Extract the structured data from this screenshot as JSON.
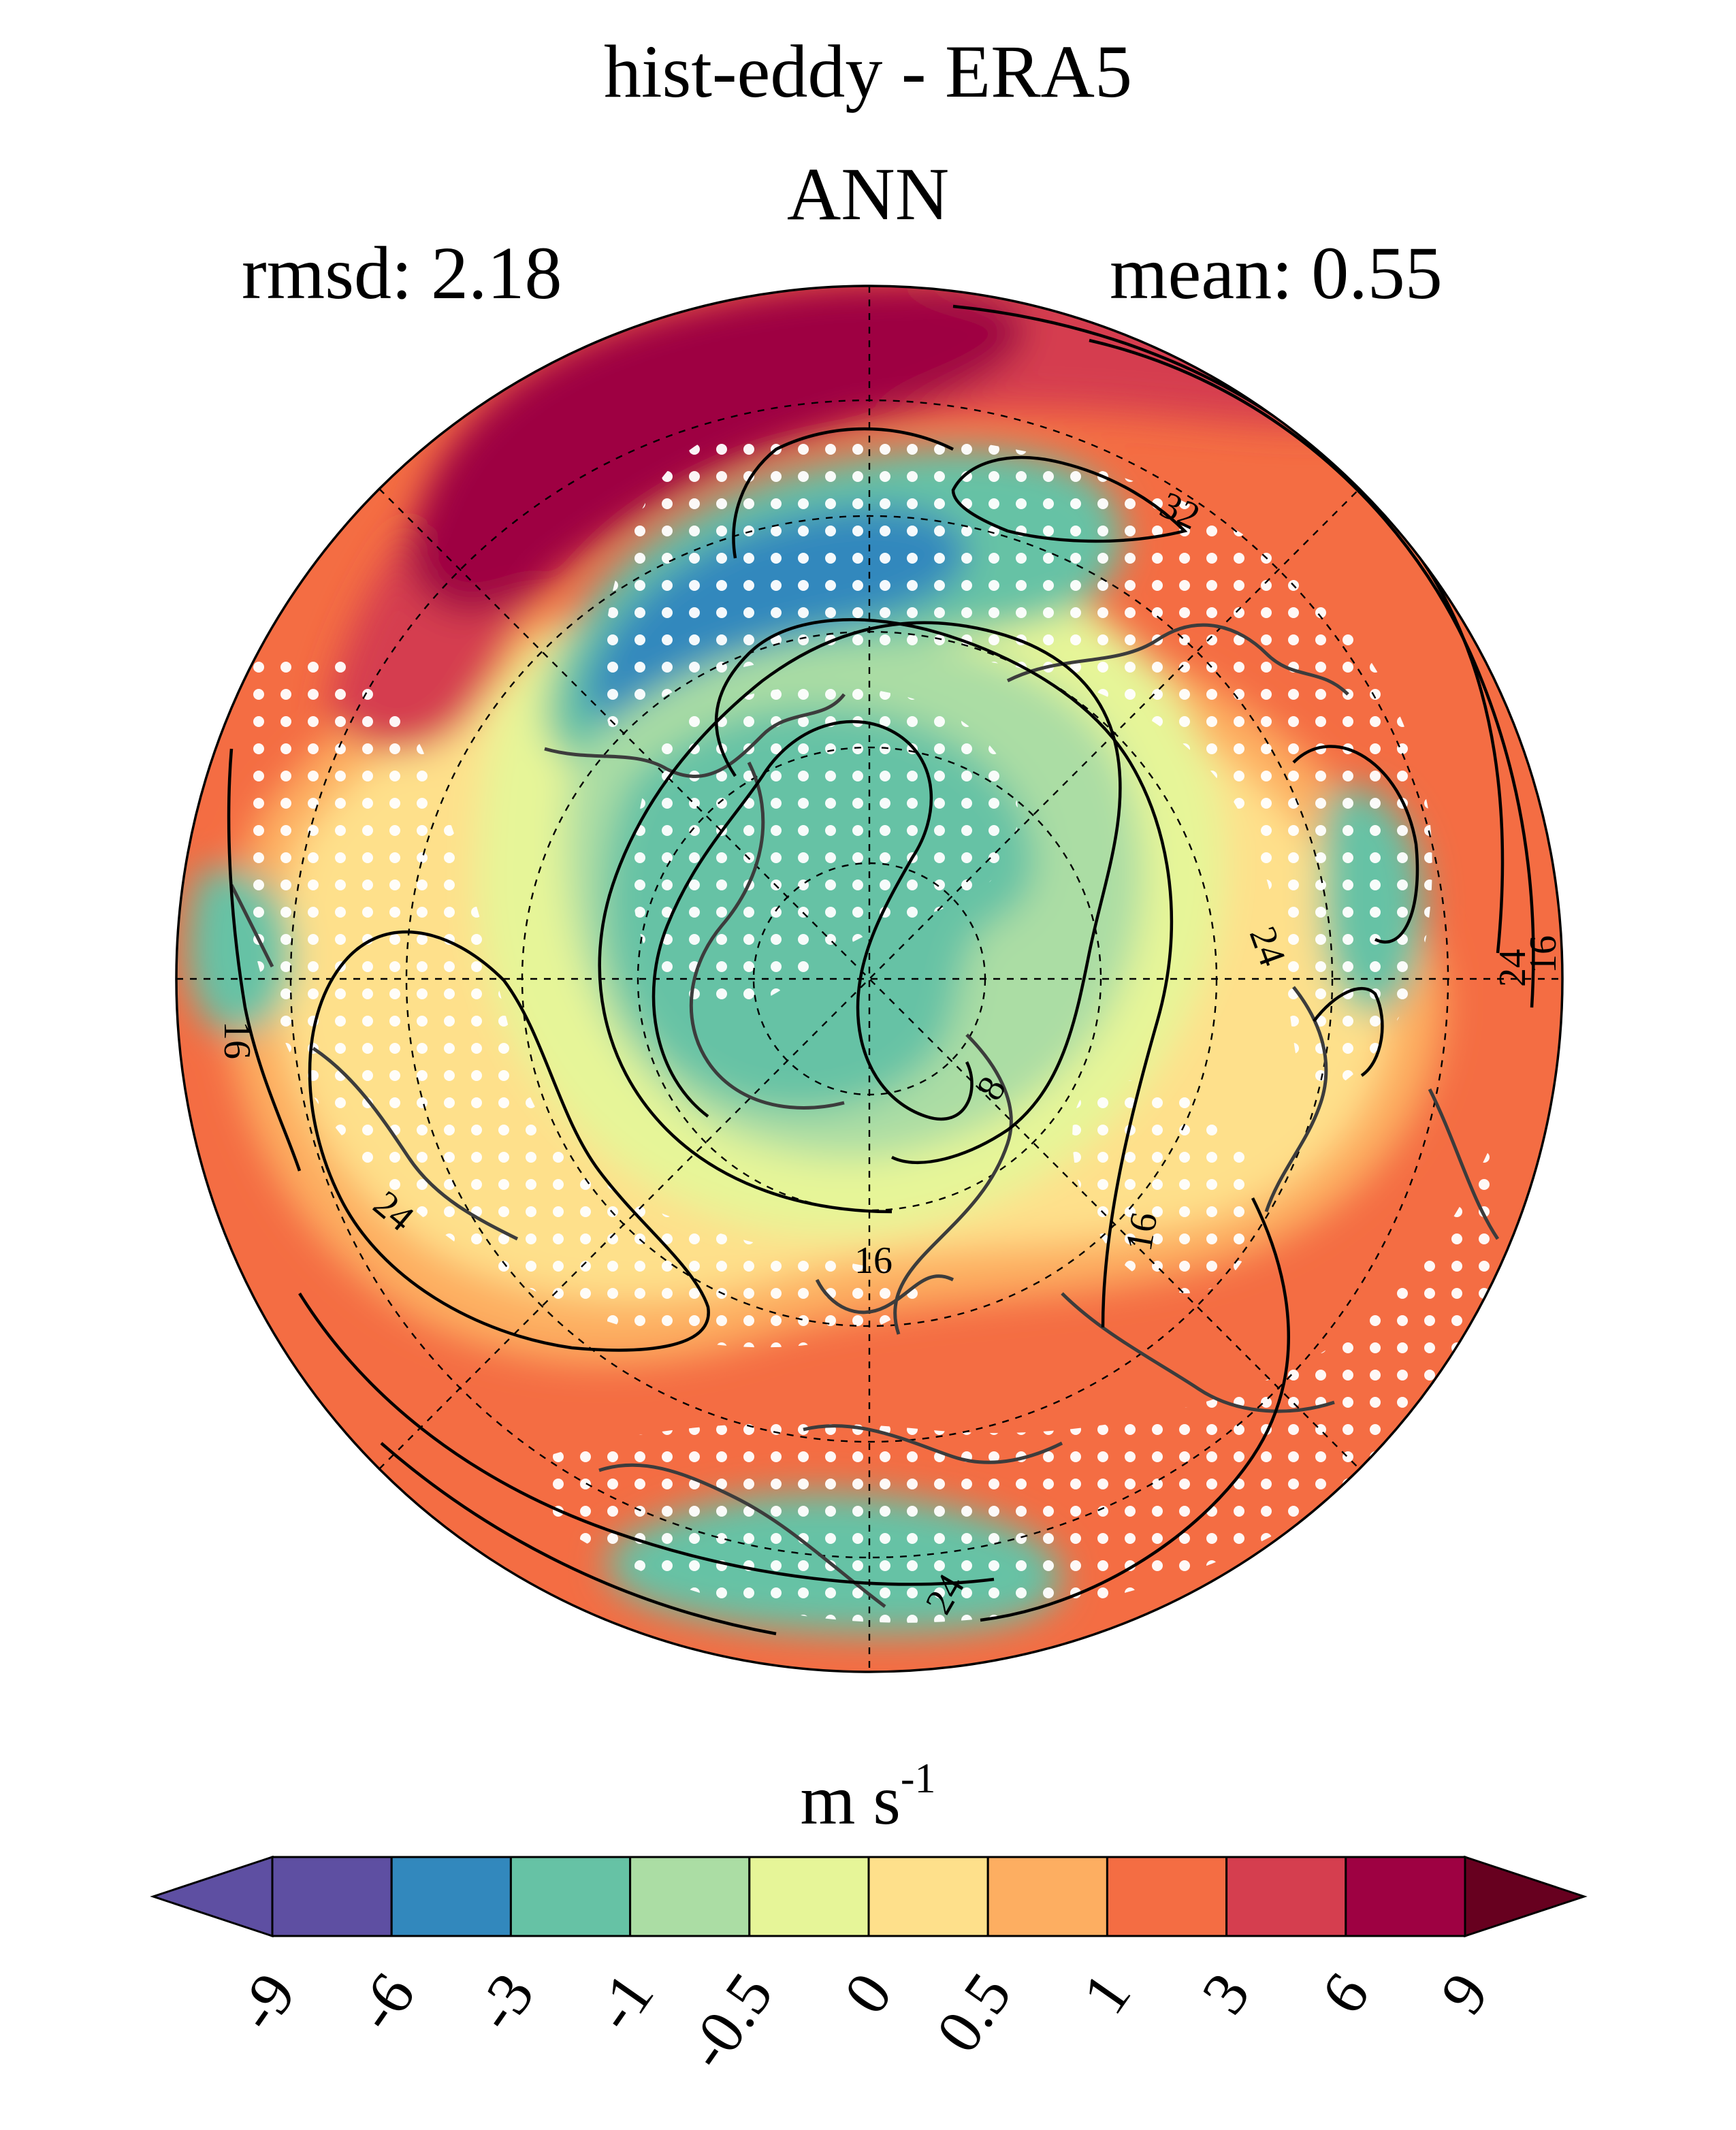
{
  "title": "hist-eddy - ERA5",
  "subtitle": "ANN",
  "stats": {
    "rmsd": "rmsd: 2.18",
    "mean": "mean: 0.55"
  },
  "chart_data": {
    "type": "polar-filled-contour-map",
    "projection": "north-polar-stereographic",
    "hemisphere": "Northern Hemisphere",
    "field": "hist-eddy minus ERA5 difference",
    "season": "ANN",
    "rmsd": 2.18,
    "mean": 0.55,
    "units": {
      "base": "m s",
      "exponent": "-1"
    },
    "colorbar": {
      "levels": [
        "-9",
        "-6",
        "-3",
        "-1",
        "-0.5",
        "0",
        "0.5",
        "1",
        "3",
        "6",
        "9"
      ],
      "colors": [
        "#5e4fa2",
        "#3288bd",
        "#66c2a5",
        "#abdda4",
        "#e6f598",
        "#fee08b",
        "#fdae61",
        "#f46d43",
        "#d53e4f",
        "#9e0142"
      ],
      "under_color": "#5e4fa2",
      "over_color": "#67001f",
      "extend": "both"
    },
    "contour_overlay": {
      "style": "solid black lines",
      "labels": [
        "8",
        "16",
        "16",
        "16",
        "24",
        "24",
        "24",
        "32"
      ]
    },
    "stippling": "white dots",
    "gridlines": "dashed"
  }
}
